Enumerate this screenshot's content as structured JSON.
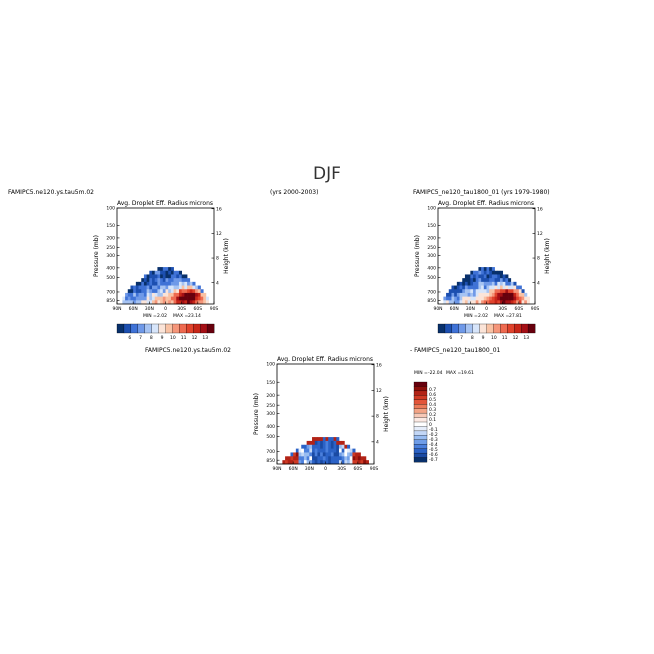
{
  "page": {
    "main_title": "DJF",
    "top_left_case": "FAMIPC5.ne120.ys.tau5m.02",
    "top_mid_years": "(yrs 2000-2003)",
    "top_right_case": "FAMIPC5_ne120_tau1800_01 (yrs 1979-1980)",
    "diff_left": "FAMIPC5.ne120.ys.tau5m.02",
    "diff_right": "- FAMIPC5_ne120_tau1800_01"
  },
  "colors": {
    "abs_scale": [
      "#08306b",
      "#1c4fb0",
      "#3f72d6",
      "#6f99e8",
      "#a6c3f2",
      "#d7e5fa",
      "#fbe4d8",
      "#f9c2a4",
      "#f5967a",
      "#ee6a50",
      "#e0432c",
      "#c72618",
      "#a50f15",
      "#67000d"
    ],
    "diff_scale": [
      "#08306b",
      "#1a4aa3",
      "#2b62c6",
      "#4a7fdc",
      "#6f9de8",
      "#98bcf1",
      "#c3d7f6",
      "#e6eefb",
      "#ffffff",
      "#fbe9e3",
      "#f7c8b6",
      "#f3a486",
      "#ec7a59",
      "#e2553a",
      "#cf3a24",
      "#b22316",
      "#8c0f0b",
      "#67000d"
    ]
  },
  "chart_data": [
    {
      "type": "heatmap",
      "panel": "top-left",
      "title": "Avg. Droplet Eff. Radius",
      "units": "microns",
      "ylabel": "Pressure (mb)",
      "y2label": "Height (km)",
      "x_ticks": [
        "90N",
        "60N",
        "30N",
        "0",
        "30S",
        "60S",
        "90S"
      ],
      "y_ticks": [
        "100",
        "150",
        "200",
        "250",
        "300",
        "400",
        "500",
        "700",
        "850"
      ],
      "y2_ticks": [
        "16",
        "12",
        "8",
        "4"
      ],
      "min_label": "MIN =",
      "min": "2.02",
      "max_label": "MAX =",
      "max": "23.14",
      "colorbar_labels": [
        "6",
        "7",
        "8",
        "9",
        "10",
        "11",
        "12",
        "13"
      ],
      "cloud_top_mb": 400,
      "peak_lat": 45,
      "peak_value": 23.14,
      "pattern": "absolute"
    },
    {
      "type": "heatmap",
      "panel": "top-right",
      "title": "Avg. Droplet Eff. Radius",
      "units": "microns",
      "ylabel": "Pressure (mb)",
      "y2label": "Height (km)",
      "x_ticks": [
        "90N",
        "60N",
        "30N",
        "0",
        "30S",
        "60S",
        "90S"
      ],
      "y_ticks": [
        "100",
        "150",
        "200",
        "250",
        "300",
        "400",
        "500",
        "700",
        "850"
      ],
      "y2_ticks": [
        "16",
        "12",
        "8",
        "4"
      ],
      "min_label": "MIN =",
      "min": "2.02",
      "max_label": "MAX =",
      "max": "27.81",
      "colorbar_labels": [
        "6",
        "7",
        "8",
        "9",
        "10",
        "11",
        "12",
        "13"
      ],
      "cloud_top_mb": 400,
      "peak_lat": 40,
      "peak_value": 27.81,
      "pattern": "absolute"
    },
    {
      "type": "heatmap",
      "panel": "bottom-diff",
      "title": "Avg. Droplet Eff. Radius",
      "units": "microns",
      "ylabel": "Pressure (mb)",
      "y2label": "Height (km)",
      "x_ticks": [
        "90N",
        "60N",
        "30N",
        "0",
        "30S",
        "60S",
        "90S"
      ],
      "y_ticks": [
        "100",
        "150",
        "200",
        "250",
        "300",
        "400",
        "500",
        "700",
        "850"
      ],
      "y2_ticks": [
        "16",
        "12",
        "8",
        "4"
      ],
      "min_label": "MIN =",
      "min": "-22.04",
      "max_label": "MAX =",
      "max": "19.61",
      "colorbar_labels": [
        "0.7",
        "0.6",
        "0.5",
        "0.4",
        "0.3",
        "0.2",
        "0.1",
        "0",
        "-0.1",
        "-0.2",
        "-0.3",
        "-0.4",
        "-0.5",
        "-0.6",
        "-0.7"
      ],
      "cloud_top_mb": 500,
      "pattern": "difference"
    }
  ]
}
